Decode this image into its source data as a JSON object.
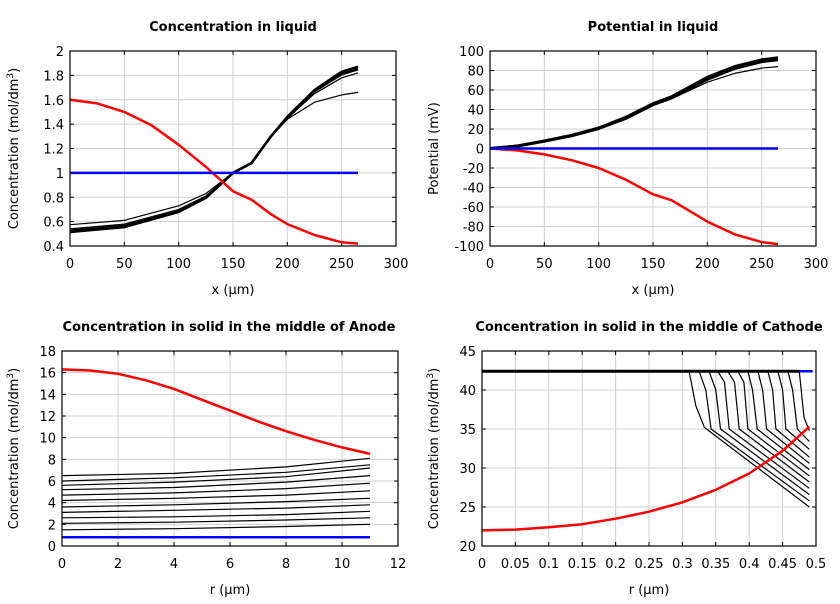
{
  "chart_data": [
    {
      "type": "line",
      "title": "Concentration in liquid",
      "xlabel": "x (µm)",
      "ylabel": "Concentration (mol/dm",
      "ylabel_sup": "3",
      "ylabel_end": ")",
      "xlim": [
        0,
        300
      ],
      "ylim": [
        0.4,
        2
      ],
      "xticks": [
        "0",
        "50",
        "100",
        "150",
        "200",
        "250",
        "300"
      ],
      "yticks": [
        "0.4",
        "0.6",
        "0.8",
        "1",
        "1.2",
        "1.4",
        "1.6",
        "1.8",
        "2"
      ],
      "grid": true,
      "series": [
        {
          "color": "#000000",
          "width": 1.2,
          "x": [
            0,
            50,
            100,
            125,
            150,
            167,
            185,
            200,
            225,
            250,
            265
          ],
          "y": [
            0.575,
            0.61,
            0.73,
            0.83,
            1.0,
            1.08,
            1.3,
            1.44,
            1.58,
            1.64,
            1.66
          ]
        },
        {
          "color": "#000000",
          "width": 1.2,
          "x": [
            0,
            50,
            100,
            125,
            150,
            167,
            185,
            200,
            225,
            250,
            265
          ],
          "y": [
            0.54,
            0.58,
            0.7,
            0.81,
            1.0,
            1.08,
            1.3,
            1.45,
            1.65,
            1.78,
            1.82
          ]
        },
        {
          "color": "#000000",
          "width": 2.5,
          "x": [
            0,
            50,
            100,
            125,
            150,
            167,
            185,
            200,
            225,
            250,
            265
          ],
          "y": [
            0.525,
            0.565,
            0.685,
            0.8,
            1.0,
            1.08,
            1.3,
            1.45,
            1.67,
            1.81,
            1.85
          ]
        },
        {
          "color": "#000000",
          "width": 2.5,
          "x": [
            0,
            50,
            100,
            125,
            150,
            167,
            185,
            200,
            225,
            250,
            265
          ],
          "y": [
            0.515,
            0.555,
            0.68,
            0.795,
            1.0,
            1.08,
            1.3,
            1.46,
            1.68,
            1.83,
            1.87
          ]
        },
        {
          "color": "#ff0000",
          "width": 2.5,
          "x": [
            0,
            25,
            50,
            75,
            100,
            125,
            140,
            150,
            167,
            185,
            200,
            225,
            250,
            265
          ],
          "y": [
            1.6,
            1.57,
            1.5,
            1.39,
            1.23,
            1.05,
            0.93,
            0.85,
            0.78,
            0.66,
            0.58,
            0.49,
            0.43,
            0.42
          ]
        },
        {
          "color": "#0000ff",
          "width": 2.5,
          "x": [
            0,
            265
          ],
          "y": [
            1,
            1
          ]
        }
      ]
    },
    {
      "type": "line",
      "title": "Potential in liquid",
      "xlabel": "x (µm)",
      "ylabel": "Potential (mV)",
      "xlim": [
        0,
        300
      ],
      "ylim": [
        -100,
        100
      ],
      "xticks": [
        "0",
        "50",
        "100",
        "150",
        "200",
        "250",
        "300"
      ],
      "yticks": [
        "-100",
        "-80",
        "-60",
        "-40",
        "-20",
        "0",
        "20",
        "40",
        "60",
        "80",
        "100"
      ],
      "grid": true,
      "series": [
        {
          "color": "#000000",
          "width": 1.2,
          "x": [
            0,
            25,
            50,
            75,
            100,
            125,
            150,
            167,
            200,
            225,
            250,
            265
          ],
          "y": [
            0,
            2.5,
            7.5,
            13,
            20,
            30,
            44,
            51,
            68,
            77,
            82.5,
            84
          ]
        },
        {
          "color": "#000000",
          "width": 3,
          "x": [
            0,
            25,
            50,
            75,
            100,
            125,
            150,
            167,
            200,
            225,
            250,
            265
          ],
          "y": [
            0,
            2.5,
            7.5,
            13,
            20.5,
            31,
            45,
            52,
            71,
            82,
            89,
            91
          ]
        },
        {
          "color": "#000000",
          "width": 3,
          "x": [
            0,
            25,
            50,
            75,
            100,
            125,
            150,
            167,
            200,
            225,
            250,
            265
          ],
          "y": [
            0,
            2.6,
            7.7,
            13.5,
            21,
            32,
            46,
            53,
            73,
            84,
            91,
            93
          ]
        },
        {
          "color": "#ff0000",
          "width": 2.5,
          "x": [
            0,
            25,
            50,
            75,
            100,
            125,
            150,
            167,
            200,
            225,
            250,
            265
          ],
          "y": [
            0,
            -2,
            -6,
            -12,
            -20,
            -32,
            -47,
            -53,
            -75,
            -88,
            -96,
            -98
          ]
        },
        {
          "color": "#0000ff",
          "width": 2.5,
          "x": [
            0,
            265
          ],
          "y": [
            0,
            0
          ]
        }
      ]
    },
    {
      "type": "line",
      "title": "Concentration in solid in the middle of Anode",
      "xlabel": "r (µm)",
      "ylabel": "Concentration (mol/dm",
      "ylabel_sup": "3",
      "ylabel_end": ")",
      "xlim": [
        0,
        12
      ],
      "ylim": [
        0,
        18
      ],
      "xticks": [
        "0",
        "2",
        "4",
        "6",
        "8",
        "10",
        "12"
      ],
      "yticks": [
        "0",
        "2",
        "4",
        "6",
        "8",
        "10",
        "12",
        "14",
        "16",
        "18"
      ],
      "grid": true,
      "series": [
        {
          "color": "#000000",
          "width": 1.2,
          "x": [
            0,
            4,
            8,
            11
          ],
          "y": [
            1.5,
            1.6,
            1.8,
            2.0
          ]
        },
        {
          "color": "#000000",
          "width": 1.2,
          "x": [
            0,
            4,
            8,
            11
          ],
          "y": [
            2.1,
            2.2,
            2.4,
            2.6
          ]
        },
        {
          "color": "#000000",
          "width": 1.2,
          "x": [
            0,
            4,
            8,
            11
          ],
          "y": [
            2.6,
            2.7,
            2.9,
            3.2
          ]
        },
        {
          "color": "#000000",
          "width": 1.2,
          "x": [
            0,
            4,
            8,
            11
          ],
          "y": [
            3.1,
            3.3,
            3.5,
            3.8
          ]
        },
        {
          "color": "#000000",
          "width": 1.2,
          "x": [
            0,
            4,
            8,
            11
          ],
          "y": [
            3.6,
            3.8,
            4.1,
            4.4
          ]
        },
        {
          "color": "#000000",
          "width": 1.2,
          "x": [
            0,
            4,
            8,
            11
          ],
          "y": [
            4.2,
            4.4,
            4.7,
            5.1
          ]
        },
        {
          "color": "#000000",
          "width": 1.2,
          "x": [
            0,
            4,
            8,
            11
          ],
          "y": [
            4.7,
            4.9,
            5.3,
            5.8
          ]
        },
        {
          "color": "#000000",
          "width": 1.2,
          "x": [
            0,
            4,
            8,
            11
          ],
          "y": [
            5.2,
            5.4,
            5.9,
            6.5
          ]
        },
        {
          "color": "#000000",
          "width": 1.2,
          "x": [
            0,
            4,
            8,
            11
          ],
          "y": [
            5.6,
            5.9,
            6.4,
            7.2
          ]
        },
        {
          "color": "#000000",
          "width": 1.2,
          "x": [
            0,
            4,
            8,
            11
          ],
          "y": [
            6.0,
            6.3,
            6.8,
            7.5
          ]
        },
        {
          "color": "#000000",
          "width": 1.2,
          "x": [
            0,
            4,
            8,
            11
          ],
          "y": [
            6.5,
            6.7,
            7.3,
            8.1
          ]
        },
        {
          "color": "#ff0000",
          "width": 2.5,
          "x": [
            0,
            1,
            2,
            3,
            4,
            5,
            6,
            7,
            8,
            9,
            10,
            11
          ],
          "y": [
            16.3,
            16.2,
            15.9,
            15.3,
            14.5,
            13.5,
            12.5,
            11.5,
            10.6,
            9.8,
            9.1,
            8.5
          ]
        },
        {
          "color": "#0000ff",
          "width": 2.5,
          "x": [
            0,
            11
          ],
          "y": [
            0.8,
            0.8
          ]
        }
      ]
    },
    {
      "type": "line",
      "title": "Concentration in solid in the middle of Cathode",
      "xlabel": "r (µm)",
      "ylabel": "Concentration (mol/dm",
      "ylabel_sup": "3",
      "ylabel_end": ")",
      "xlim": [
        0,
        0.5
      ],
      "ylim": [
        20,
        45
      ],
      "xticks": [
        "0",
        "0.05",
        "0.1",
        "0.15",
        "0.2",
        "0.25",
        "0.3",
        "0.35",
        "0.4",
        "0.45",
        "0.5"
      ],
      "yticks": [
        "20",
        "25",
        "30",
        "35",
        "40",
        "45"
      ],
      "grid": true,
      "series": [
        {
          "color": "#0000ff",
          "width": 2.5,
          "x": [
            0,
            0.495
          ],
          "y": [
            42.4,
            42.4
          ]
        },
        {
          "color": "#000000",
          "width": 3,
          "x": [
            0,
            0.475
          ],
          "y": [
            42.4,
            42.4
          ]
        },
        {
          "color": "#000000",
          "width": 1.2,
          "x": [
            0.31,
            0.32,
            0.333,
            0.49
          ],
          "y": [
            42.4,
            38,
            35.2,
            25
          ]
        },
        {
          "color": "#000000",
          "width": 1.2,
          "x": [
            0.325,
            0.335,
            0.343,
            0.49
          ],
          "y": [
            42.4,
            40,
            35,
            25.8
          ]
        },
        {
          "color": "#000000",
          "width": 1.2,
          "x": [
            0.34,
            0.35,
            0.357,
            0.49
          ],
          "y": [
            42.4,
            40,
            35,
            26.6
          ]
        },
        {
          "color": "#000000",
          "width": 1.2,
          "x": [
            0.353,
            0.363,
            0.37,
            0.49
          ],
          "y": [
            42.4,
            41,
            35,
            27.4
          ]
        },
        {
          "color": "#000000",
          "width": 1.2,
          "x": [
            0.368,
            0.378,
            0.385,
            0.49
          ],
          "y": [
            42.4,
            41,
            35,
            28.2
          ]
        },
        {
          "color": "#000000",
          "width": 1.2,
          "x": [
            0.383,
            0.392,
            0.398,
            0.49
          ],
          "y": [
            42.4,
            41,
            35,
            29.0
          ]
        },
        {
          "color": "#000000",
          "width": 1.2,
          "x": [
            0.398,
            0.405,
            0.412,
            0.49
          ],
          "y": [
            42.4,
            40,
            35,
            29.8
          ]
        },
        {
          "color": "#000000",
          "width": 1.2,
          "x": [
            0.413,
            0.42,
            0.426,
            0.49
          ],
          "y": [
            42.4,
            40,
            35,
            30.6
          ]
        },
        {
          "color": "#000000",
          "width": 1.2,
          "x": [
            0.428,
            0.435,
            0.44,
            0.49
          ],
          "y": [
            42.4,
            40,
            35,
            31.4
          ]
        },
        {
          "color": "#000000",
          "width": 1.2,
          "x": [
            0.443,
            0.45,
            0.455,
            0.49
          ],
          "y": [
            42.4,
            40,
            35,
            32.4
          ]
        },
        {
          "color": "#000000",
          "width": 1.2,
          "x": [
            0.458,
            0.465,
            0.472,
            0.49
          ],
          "y": [
            42.4,
            40,
            35,
            33.4
          ]
        },
        {
          "color": "#000000",
          "width": 1.2,
          "x": [
            0.475,
            0.482,
            0.49
          ],
          "y": [
            42.4,
            36.5,
            34.8
          ]
        },
        {
          "color": "#ff0000",
          "width": 2.5,
          "x": [
            0,
            0.05,
            0.1,
            0.15,
            0.2,
            0.25,
            0.3,
            0.35,
            0.4,
            0.45,
            0.49
          ],
          "y": [
            22,
            22.1,
            22.4,
            22.8,
            23.5,
            24.4,
            25.6,
            27.2,
            29.3,
            32.2,
            35.3
          ]
        }
      ]
    }
  ]
}
